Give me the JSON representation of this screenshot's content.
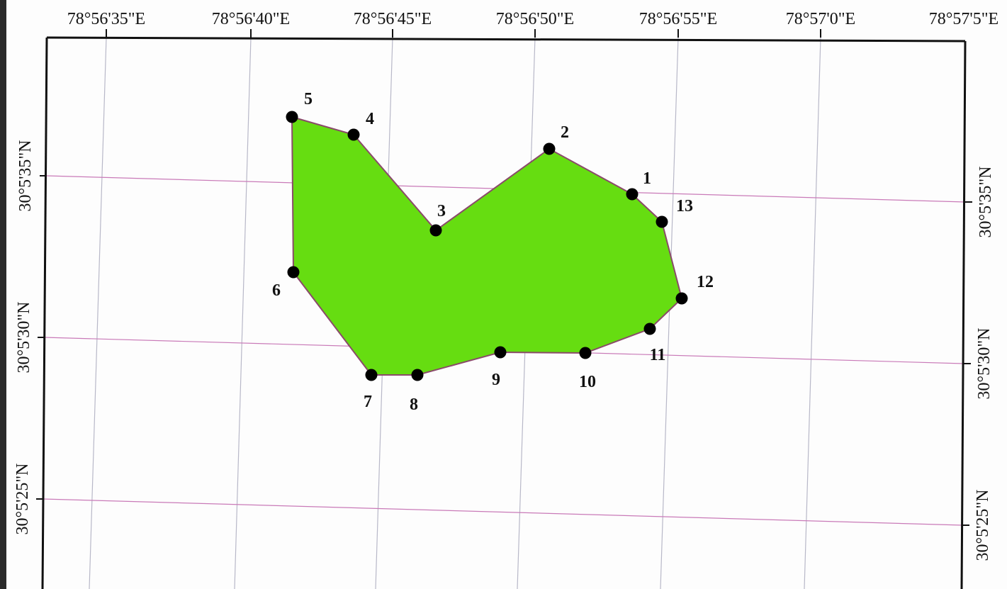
{
  "map": {
    "longitude_labels": [
      "78°56'35\"E",
      "78°56'40\"E",
      "78°56'45\"E",
      "78°56'50\"E",
      "78°56'55\"E",
      "78°57'0\"E",
      "78°57'5\"E"
    ],
    "latitude_labels": [
      "30°5'35\"N",
      "30°5'30\"N",
      "30°5'25\"N"
    ],
    "polygon": {
      "fill_color": "#66dd11",
      "edge_color": "#8a4a6a",
      "vertex_color": "#000000"
    },
    "vertices": [
      {
        "id": "1",
        "label": "1"
      },
      {
        "id": "13",
        "label": "13"
      },
      {
        "id": "12",
        "label": "12"
      },
      {
        "id": "11",
        "label": "11"
      },
      {
        "id": "10",
        "label": "10"
      },
      {
        "id": "9",
        "label": "9"
      },
      {
        "id": "8",
        "label": "8"
      },
      {
        "id": "7",
        "label": "7"
      },
      {
        "id": "6",
        "label": "6"
      },
      {
        "id": "5",
        "label": "5"
      },
      {
        "id": "4",
        "label": "4"
      },
      {
        "id": "3",
        "label": "3"
      },
      {
        "id": "2",
        "label": "2"
      }
    ],
    "grid_colors": {
      "meridian": "#b8b8c8",
      "parallel": "#c97ab8",
      "frame": "#111111"
    }
  }
}
